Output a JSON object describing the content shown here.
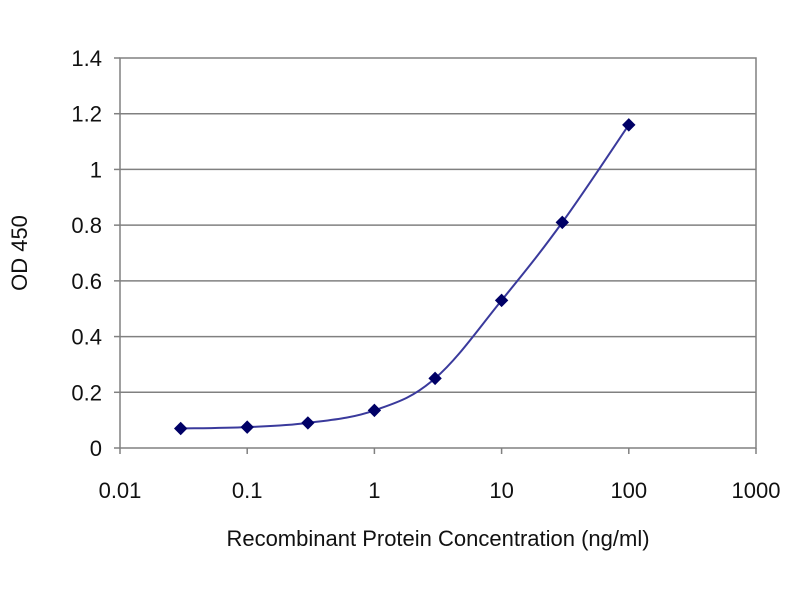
{
  "chart_data": {
    "type": "line",
    "title": "",
    "xlabel": "Recombinant Protein Concentration (ng/ml)",
    "ylabel": "OD 450",
    "xscale": "log",
    "xlim": [
      0.01,
      1000
    ],
    "ylim": [
      0,
      1.4
    ],
    "xticks": [
      "0.01",
      "0.1",
      "1",
      "10",
      "100",
      "1000"
    ],
    "xtick_values": [
      0.01,
      0.1,
      1,
      10,
      100,
      1000
    ],
    "yticks": [
      "0",
      "0.2",
      "0.4",
      "0.6",
      "0.8",
      "1",
      "1.2",
      "1.4"
    ],
    "ytick_values": [
      0,
      0.2,
      0.4,
      0.6,
      0.8,
      1,
      1.2,
      1.4
    ],
    "grid": "horizontal",
    "legend": "none",
    "series": [
      {
        "x": [
          0.03,
          0.1,
          0.3,
          1,
          3,
          10,
          30,
          100
        ],
        "y": [
          0.07,
          0.075,
          0.09,
          0.135,
          0.25,
          0.53,
          0.81,
          1.16
        ]
      }
    ],
    "colors": {
      "line": "#3a3a9c",
      "marker": "#000066",
      "grid": "#808080",
      "axis": "#808080"
    }
  }
}
